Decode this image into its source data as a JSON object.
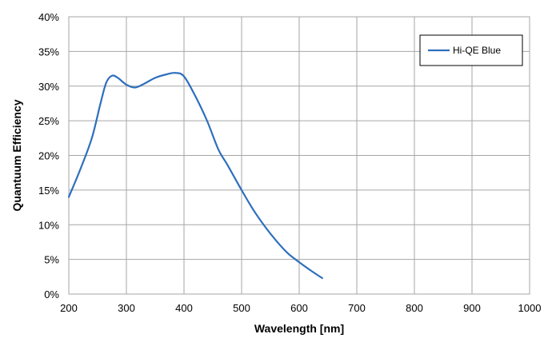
{
  "chart_data": {
    "type": "line",
    "title": "",
    "xlabel": "Wavelength [nm]",
    "ylabel": "Quantuum Efficiency",
    "xlim": [
      200,
      1000
    ],
    "ylim": [
      0,
      40
    ],
    "x_ticks": [
      "200",
      "300",
      "400",
      "500",
      "600",
      "700",
      "800",
      "900",
      "1000"
    ],
    "y_ticks": [
      "0%",
      "5%",
      "10%",
      "15%",
      "20%",
      "25%",
      "30%",
      "35%",
      "40%"
    ],
    "grid": true,
    "legend_position": "top-right",
    "series": [
      {
        "name": "Hi-QE Blue",
        "color": "#2e6fbd",
        "x": [
          200,
          220,
          240,
          255,
          265,
          275,
          285,
          300,
          315,
          330,
          350,
          370,
          385,
          400,
          420,
          440,
          460,
          475,
          500,
          520,
          540,
          560,
          580,
          600,
          620,
          640
        ],
        "y": [
          14.0,
          18.0,
          22.5,
          27.5,
          30.5,
          31.5,
          31.2,
          30.2,
          29.8,
          30.3,
          31.2,
          31.7,
          31.9,
          31.4,
          28.5,
          25.0,
          20.8,
          18.7,
          15.0,
          12.2,
          9.8,
          7.7,
          5.9,
          4.6,
          3.4,
          2.3
        ]
      }
    ]
  }
}
